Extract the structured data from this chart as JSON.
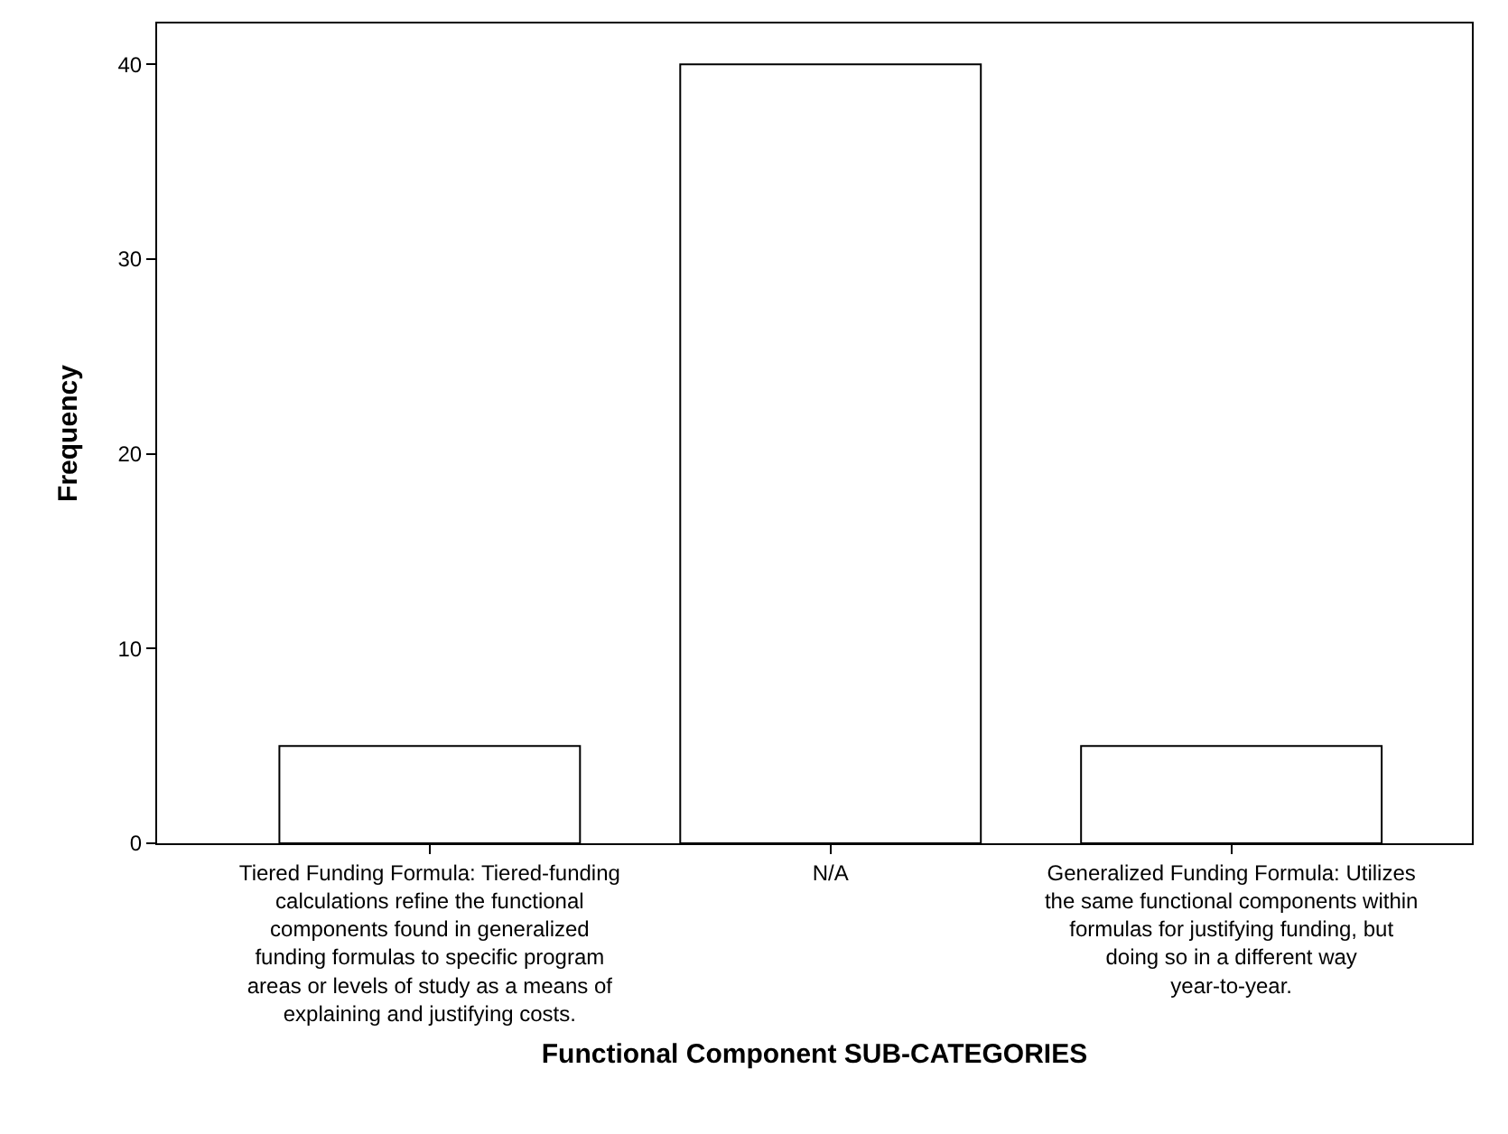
{
  "chart_data": {
    "type": "bar",
    "categories": [
      "Tiered Funding Formula: Tiered-funding calculations refine the functional components found in generalized funding formulas to specific program areas or levels of study as a means of explaining and justifying costs.",
      "N/A",
      "Generalized Funding Formula: Utilizes the same functional components within formulas for justifying funding, but doing so in a different way year-to-year."
    ],
    "values": [
      5,
      40,
      5
    ],
    "color": "#ffffff",
    "xlabel": "Functional Component SUB-CATEGORIES",
    "ylabel": "Frequency",
    "ylim": [
      0,
      42.1
    ],
    "yticks": [
      0,
      10,
      20,
      30,
      40
    ],
    "grid": false,
    "legend": false
  }
}
